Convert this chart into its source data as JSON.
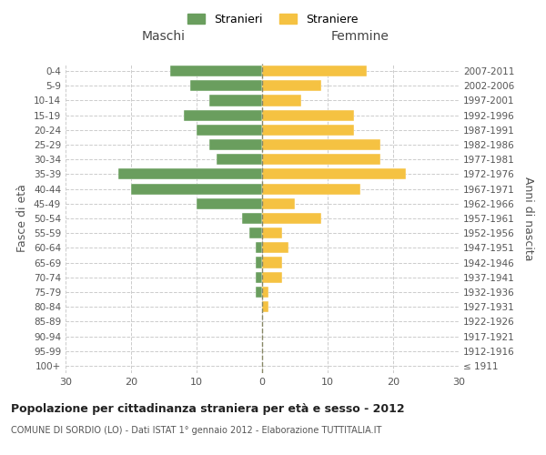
{
  "age_groups": [
    "100+",
    "95-99",
    "90-94",
    "85-89",
    "80-84",
    "75-79",
    "70-74",
    "65-69",
    "60-64",
    "55-59",
    "50-54",
    "45-49",
    "40-44",
    "35-39",
    "30-34",
    "25-29",
    "20-24",
    "15-19",
    "10-14",
    "5-9",
    "0-4"
  ],
  "birth_years": [
    "≤ 1911",
    "1912-1916",
    "1917-1921",
    "1922-1926",
    "1927-1931",
    "1932-1936",
    "1937-1941",
    "1942-1946",
    "1947-1951",
    "1952-1956",
    "1957-1961",
    "1962-1966",
    "1967-1971",
    "1972-1976",
    "1977-1981",
    "1982-1986",
    "1987-1991",
    "1992-1996",
    "1997-2001",
    "2002-2006",
    "2007-2011"
  ],
  "maschi": [
    0,
    0,
    0,
    0,
    0,
    1,
    1,
    1,
    1,
    2,
    3,
    10,
    20,
    22,
    7,
    8,
    10,
    12,
    8,
    11,
    14
  ],
  "femmine": [
    0,
    0,
    0,
    0,
    1,
    1,
    3,
    3,
    4,
    3,
    9,
    5,
    15,
    22,
    18,
    18,
    14,
    14,
    6,
    9,
    16
  ],
  "maschi_color": "#6a9e5e",
  "femmine_color": "#f5c242",
  "background_color": "#ffffff",
  "grid_color": "#cccccc",
  "title": "Popolazione per cittadinanza straniera per età e sesso - 2012",
  "subtitle": "COMUNE DI SORDIO (LO) - Dati ISTAT 1° gennaio 2012 - Elaborazione TUTTITALIA.IT",
  "ylabel_left": "Fasce di età",
  "ylabel_right": "Anni di nascita",
  "xlabel_left": "Maschi",
  "xlabel_right": "Femmine",
  "legend_stranieri": "Stranieri",
  "legend_straniere": "Straniere",
  "xlim": 30
}
